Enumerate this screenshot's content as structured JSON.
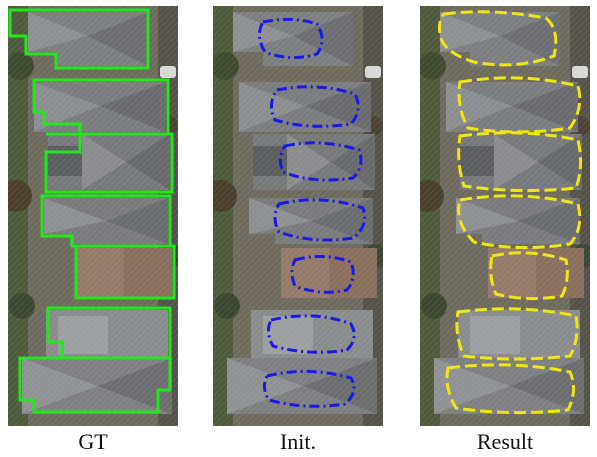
{
  "figure": {
    "captions": [
      "GT",
      "Init.",
      "Result"
    ],
    "outline_colors": {
      "gt": "#22e61e",
      "init": "#1a1ae6",
      "result": "#f0e614"
    },
    "outline_styles": {
      "gt": "solid",
      "init": "dash-dot",
      "result": "dashed"
    }
  }
}
